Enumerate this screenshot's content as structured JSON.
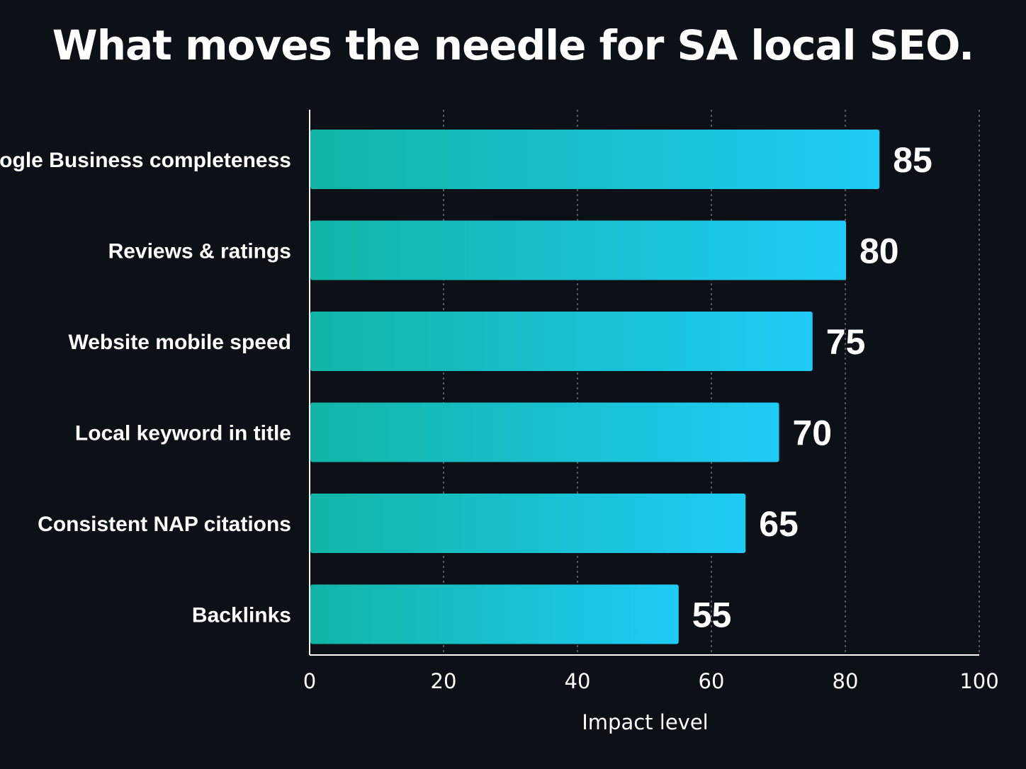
{
  "chart_data": {
    "type": "bar",
    "orientation": "horizontal",
    "title": "What moves the needle for SA local SEO.",
    "xlabel": "Impact level",
    "ylabel": "",
    "categories": [
      "Google Business completeness",
      "Reviews & ratings",
      "Website mobile speed",
      "Local keyword in title",
      "Consistent NAP citations",
      "Backlinks"
    ],
    "values": [
      85,
      80,
      75,
      70,
      65,
      55
    ],
    "value_labels": [
      "85",
      "80",
      "75",
      "70",
      "65",
      "55"
    ],
    "xlim": [
      0,
      100
    ],
    "xticks": [
      0,
      20,
      40,
      60,
      80,
      100
    ],
    "xtick_labels": [
      "0",
      "20",
      "40",
      "60",
      "80",
      "100"
    ],
    "grid": "vertical dotted",
    "legend": "none",
    "colors": {
      "background": "#0b1116",
      "bar_start": "#12b5a6",
      "bar_end": "#1ecbf5",
      "text": "#ffffff",
      "grid": "#6b7178"
    }
  }
}
